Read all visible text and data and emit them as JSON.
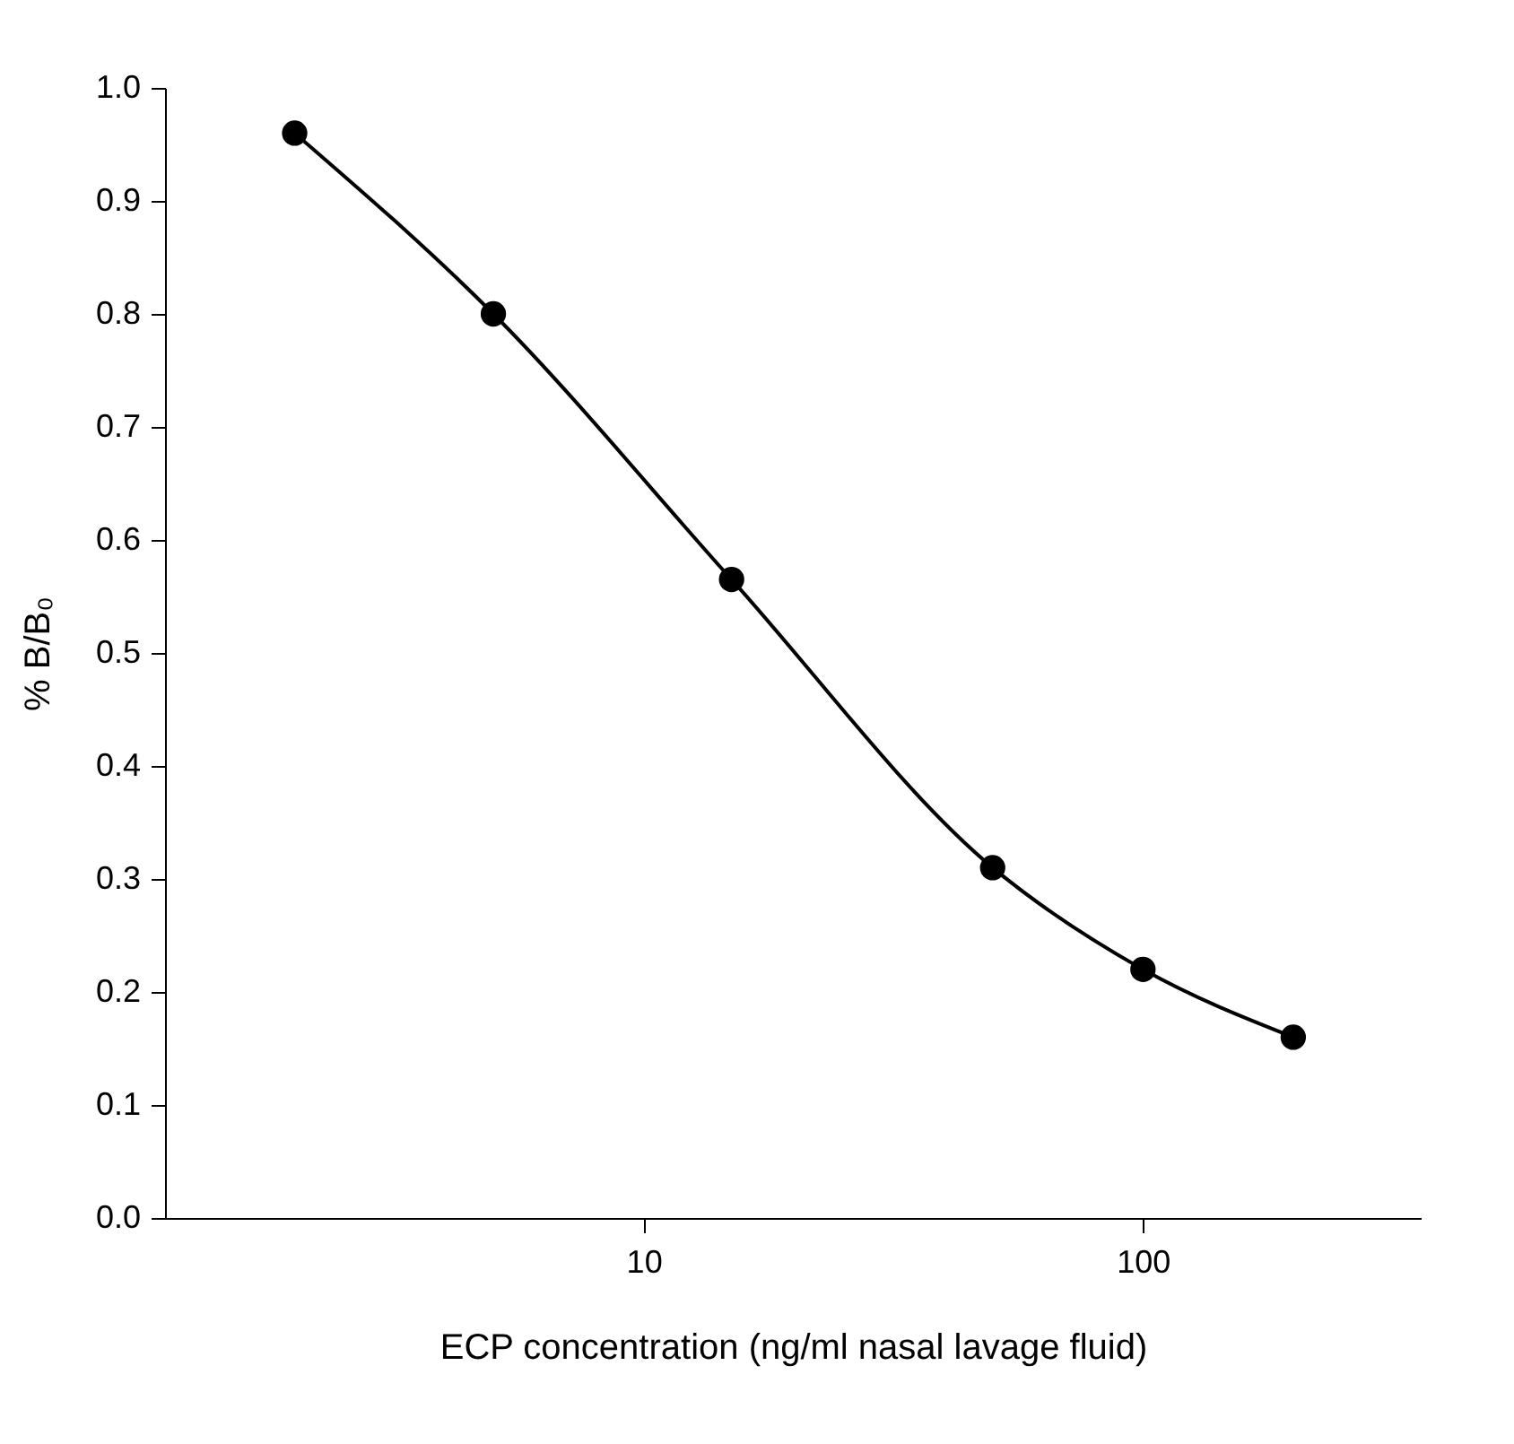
{
  "chart_data": {
    "type": "line",
    "xlabel": "ECP concentration (ng/ml nasal lavage fluid)",
    "ylabel": "% B/B₀",
    "x": [
      2,
      5,
      15,
      50,
      100,
      200
    ],
    "series": [
      {
        "color": "#000000",
        "values": [
          0.96,
          0.8,
          0.565,
          0.31,
          0.22,
          0.16
        ]
      }
    ],
    "log": "x",
    "xlim": [
      1.1,
      360
    ],
    "xticks": [
      10,
      100
    ],
    "ylim": [
      0,
      1
    ],
    "yticks": [
      {
        "value": 0,
        "label": "0.0"
      },
      0.1,
      0.2,
      0.3,
      0.4,
      0.5,
      0.6,
      0.7,
      0.8,
      0.9,
      {
        "value": 1,
        "label": "1.0"
      }
    ],
    "grid": false,
    "marker": "circle",
    "line_style": "solid"
  }
}
